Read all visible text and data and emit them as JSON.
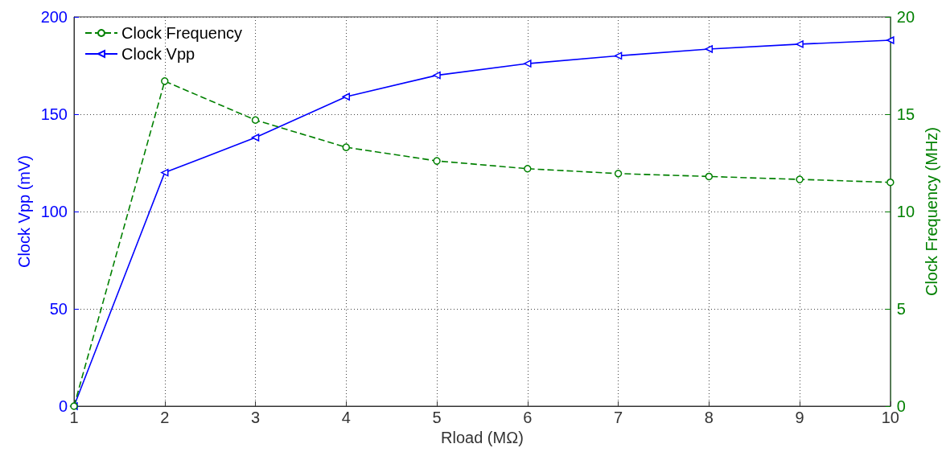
{
  "chart_data": {
    "type": "line",
    "xlabel": "Rload (MΩ)",
    "ylabel": "Clock Vpp (mV)",
    "y2label": "Clock Frequency (MHz)",
    "x": [
      1,
      2,
      3,
      4,
      5,
      6,
      7,
      8,
      9,
      10
    ],
    "series": [
      {
        "name": "Clock Frequency",
        "color": "#008000",
        "axis": "y2",
        "marker": "circle",
        "line_style": "dashed",
        "values": [
          0,
          16.7,
          14.7,
          13.3,
          12.6,
          12.2,
          11.95,
          11.8,
          11.65,
          11.5
        ]
      },
      {
        "name": "Clock Vpp",
        "color": "#0000ff",
        "marker": "triangle",
        "line_style": "solid",
        "values": [
          0,
          120,
          138,
          159,
          170,
          176,
          180,
          183.5,
          186,
          188
        ]
      }
    ],
    "xlim": [
      1,
      10
    ],
    "xticks": [
      1,
      2,
      3,
      4,
      5,
      6,
      7,
      8,
      9,
      10
    ],
    "ylim": [
      0,
      200
    ],
    "yticks": [
      0,
      50,
      100,
      150,
      200
    ],
    "y2lim": [
      0,
      20
    ],
    "y2ticks": [
      0,
      5,
      10,
      15,
      20
    ],
    "grid": true,
    "legend": "top left"
  }
}
